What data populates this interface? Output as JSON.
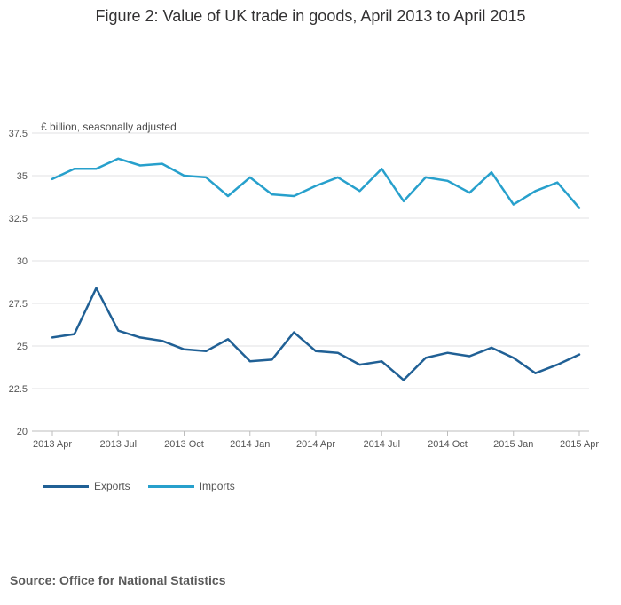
{
  "chart_data": {
    "type": "line",
    "title": "Figure 2: Value of UK trade in goods, April 2013 to April 2015",
    "ylabel": "£ billion, seasonally adjusted",
    "xlabel": "",
    "ylim": [
      20,
      37.5
    ],
    "y_ticks": [
      20,
      22.5,
      25,
      27.5,
      30,
      32.5,
      35,
      37.5
    ],
    "y_tick_labels": [
      "20",
      "22.5",
      "25",
      "27.5",
      "30",
      "32.5",
      "35",
      "37.5"
    ],
    "x": [
      "2013 Apr",
      "2013 May",
      "2013 Jun",
      "2013 Jul",
      "2013 Aug",
      "2013 Sep",
      "2013 Oct",
      "2013 Nov",
      "2013 Dec",
      "2014 Jan",
      "2014 Feb",
      "2014 Mar",
      "2014 Apr",
      "2014 May",
      "2014 Jun",
      "2014 Jul",
      "2014 Aug",
      "2014 Sep",
      "2014 Oct",
      "2014 Nov",
      "2014 Dec",
      "2015 Jan",
      "2015 Feb",
      "2015 Mar",
      "2015 Apr"
    ],
    "x_tick_labels": [
      {
        "index": 0,
        "label": "2013 Apr"
      },
      {
        "index": 3,
        "label": "2013 Jul"
      },
      {
        "index": 6,
        "label": "2013 Oct"
      },
      {
        "index": 9,
        "label": "2014 Jan"
      },
      {
        "index": 12,
        "label": "2014 Apr"
      },
      {
        "index": 15,
        "label": "2014 Jul"
      },
      {
        "index": 18,
        "label": "2014 Oct"
      },
      {
        "index": 21,
        "label": "2015 Jan"
      },
      {
        "index": 24,
        "label": "2015 Apr"
      }
    ],
    "grid": true,
    "legend_position": "bottom-left",
    "series": [
      {
        "name": "Exports",
        "color": "#206095",
        "values": [
          25.5,
          25.7,
          28.4,
          25.9,
          25.5,
          25.3,
          24.8,
          24.7,
          25.4,
          24.1,
          24.2,
          25.8,
          24.7,
          24.6,
          23.9,
          24.1,
          23.0,
          24.3,
          24.6,
          24.4,
          24.9,
          24.3,
          23.4,
          23.9,
          24.5
        ]
      },
      {
        "name": "Imports",
        "color": "#27a0cc",
        "values": [
          34.8,
          35.4,
          35.4,
          36.0,
          35.6,
          35.7,
          35.0,
          34.9,
          33.8,
          34.9,
          33.9,
          33.8,
          34.4,
          34.9,
          34.1,
          35.4,
          33.5,
          34.9,
          34.7,
          34.0,
          35.2,
          33.3,
          34.1,
          34.6,
          33.1
        ]
      }
    ]
  },
  "source": "Source: Office for National Statistics"
}
